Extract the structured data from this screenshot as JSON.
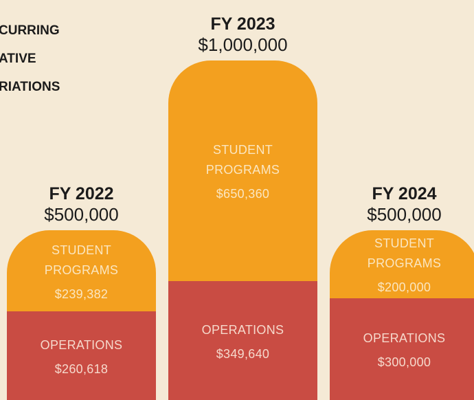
{
  "chart_data": {
    "type": "bar",
    "stacked": true,
    "title_lines": [
      "CURRING",
      "ATIVE",
      "RIATIONS"
    ],
    "categories": [
      "FY 2022",
      "FY 2023",
      "FY 2024"
    ],
    "totals": [
      500000,
      1000000,
      500000
    ],
    "total_labels": [
      "$500,000",
      "$1,000,000",
      "$500,000"
    ],
    "series": [
      {
        "name": "OPERATIONS",
        "color": "#c94c43",
        "text_color": "#f6d9cc",
        "values": [
          260618,
          349640,
          300000
        ],
        "value_labels": [
          "$260,618",
          "$349,640",
          "$300,000"
        ]
      },
      {
        "name": "STUDENT PROGRAMS",
        "color": "#f3a01f",
        "text_color": "#fbe6c0",
        "values": [
          239382,
          650360,
          200000
        ],
        "value_labels": [
          "$239,382",
          "$650,360",
          "$200,000"
        ]
      }
    ]
  }
}
